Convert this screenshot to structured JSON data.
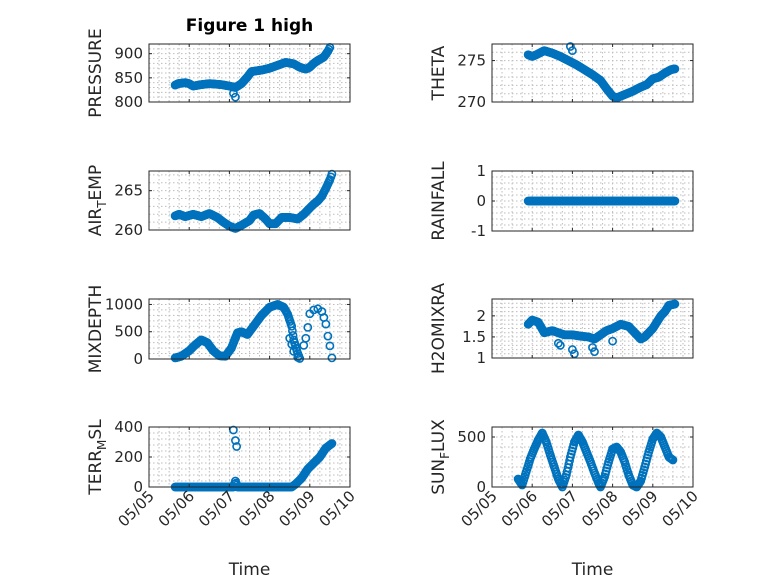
{
  "chart_data": [
    {
      "type": "scatter",
      "title": "Figure 1 high",
      "ylabel": "PRESSURE",
      "ylabel_sub": "",
      "ylim": [
        800,
        920
      ],
      "yticks": [
        800,
        850,
        900
      ],
      "xlim": [
        0,
        5
      ],
      "xticks": [
        0,
        1,
        2,
        3,
        4,
        5
      ],
      "xticklabels": [
        "05/05",
        "05/06",
        "05/07",
        "05/08",
        "05/09",
        "05/10"
      ],
      "xlabel": "",
      "show_xticklabels": false,
      "grid": true,
      "keypoints": [
        [
          0.65,
          835
        ],
        [
          0.72,
          838
        ],
        [
          0.9,
          840
        ],
        [
          1.0,
          838
        ],
        [
          1.1,
          833
        ],
        [
          1.3,
          836
        ],
        [
          1.5,
          838
        ],
        [
          1.8,
          836
        ],
        [
          2.0,
          833
        ],
        [
          2.15,
          830
        ],
        [
          2.3,
          838
        ],
        [
          2.45,
          852
        ],
        [
          2.55,
          863
        ],
        [
          2.8,
          866
        ],
        [
          3.0,
          870
        ],
        [
          3.2,
          876
        ],
        [
          3.4,
          882
        ],
        [
          3.6,
          879
        ],
        [
          3.75,
          872
        ],
        [
          3.9,
          868
        ],
        [
          4.0,
          872
        ],
        [
          4.1,
          880
        ],
        [
          4.2,
          886
        ],
        [
          4.35,
          893
        ],
        [
          4.45,
          905
        ],
        [
          4.5,
          913
        ]
      ],
      "extra_points": [
        [
          2.1,
          818
        ],
        [
          2.15,
          810
        ]
      ]
    },
    {
      "type": "scatter",
      "title": "",
      "ylabel": "THETA",
      "ylabel_sub": "",
      "ylim": [
        270,
        277
      ],
      "yticks": [
        270,
        275
      ],
      "xlim": [
        0,
        5
      ],
      "xticks": [
        0,
        1,
        2,
        3,
        4,
        5
      ],
      "xticklabels": [
        "05/05",
        "05/06",
        "05/07",
        "05/08",
        "05/09",
        "05/10"
      ],
      "xlabel": "",
      "show_xticklabels": false,
      "grid": true,
      "keypoints": [
        [
          0.9,
          275.7
        ],
        [
          1.0,
          275.5
        ],
        [
          1.1,
          275.7
        ],
        [
          1.3,
          276.2
        ],
        [
          1.5,
          275.9
        ],
        [
          1.7,
          275.5
        ],
        [
          1.9,
          275.0
        ],
        [
          2.1,
          274.5
        ],
        [
          2.3,
          273.9
        ],
        [
          2.5,
          273.3
        ],
        [
          2.7,
          272.6
        ],
        [
          2.85,
          271.6
        ],
        [
          3.0,
          270.7
        ],
        [
          3.1,
          270.5
        ],
        [
          3.3,
          270.9
        ],
        [
          3.5,
          271.3
        ],
        [
          3.7,
          271.8
        ],
        [
          3.85,
          272.1
        ],
        [
          4.0,
          272.8
        ],
        [
          4.15,
          273.0
        ],
        [
          4.3,
          273.5
        ],
        [
          4.45,
          273.9
        ],
        [
          4.55,
          274.0
        ]
      ],
      "extra_points": [
        [
          1.95,
          276.7
        ],
        [
          2.0,
          276.2
        ]
      ]
    },
    {
      "type": "scatter",
      "title": "",
      "ylabel": "AIR",
      "ylabel_sub": "T",
      "ylabel_rest": "EMP",
      "ylim": [
        260,
        267.5
      ],
      "yticks": [
        260,
        265
      ],
      "xlim": [
        0,
        5
      ],
      "xticks": [
        0,
        1,
        2,
        3,
        4,
        5
      ],
      "xticklabels": [
        "05/05",
        "05/06",
        "05/07",
        "05/08",
        "05/09",
        "05/10"
      ],
      "xlabel": "",
      "show_xticklabels": false,
      "grid": true,
      "keypoints": [
        [
          0.65,
          261.8
        ],
        [
          0.75,
          262.0
        ],
        [
          0.9,
          261.7
        ],
        [
          1.1,
          262.0
        ],
        [
          1.3,
          261.7
        ],
        [
          1.5,
          262.1
        ],
        [
          1.7,
          261.6
        ],
        [
          1.85,
          261.0
        ],
        [
          2.0,
          260.5
        ],
        [
          2.15,
          260.2
        ],
        [
          2.3,
          260.6
        ],
        [
          2.5,
          261.2
        ],
        [
          2.6,
          261.9
        ],
        [
          2.75,
          262.1
        ],
        [
          2.9,
          261.4
        ],
        [
          3.0,
          260.8
        ],
        [
          3.15,
          260.8
        ],
        [
          3.3,
          261.6
        ],
        [
          3.5,
          261.6
        ],
        [
          3.7,
          261.4
        ],
        [
          3.85,
          262.0
        ],
        [
          4.0,
          262.8
        ],
        [
          4.1,
          263.3
        ],
        [
          4.2,
          263.7
        ],
        [
          4.3,
          264.3
        ],
        [
          4.4,
          265.3
        ],
        [
          4.5,
          266.4
        ],
        [
          4.55,
          267.1
        ]
      ],
      "extra_points": []
    },
    {
      "type": "scatter",
      "title": "",
      "ylabel": "RAINFALL",
      "ylabel_sub": "",
      "ylim": [
        -1,
        1
      ],
      "yticks": [
        -1,
        0,
        1
      ],
      "xlim": [
        0,
        5
      ],
      "xticks": [
        0,
        1,
        2,
        3,
        4,
        5
      ],
      "xticklabels": [
        "05/05",
        "05/06",
        "05/07",
        "05/08",
        "05/09",
        "05/10"
      ],
      "xlabel": "",
      "show_xticklabels": false,
      "grid": true,
      "keypoints": [
        [
          0.9,
          0
        ],
        [
          4.55,
          0
        ]
      ],
      "extra_points": []
    },
    {
      "type": "scatter",
      "title": "",
      "ylabel": "MIXDEPTH",
      "ylabel_sub": "",
      "ylim": [
        0,
        1100
      ],
      "yticks": [
        0,
        500,
        1000
      ],
      "xlim": [
        0,
        5
      ],
      "xticks": [
        0,
        1,
        2,
        3,
        4,
        5
      ],
      "xticklabels": [
        "05/05",
        "05/06",
        "05/07",
        "05/08",
        "05/09",
        "05/10"
      ],
      "xlabel": "",
      "show_xticklabels": false,
      "grid": true,
      "keypoints": [
        [
          0.65,
          20
        ],
        [
          0.8,
          50
        ],
        [
          1.0,
          150
        ],
        [
          1.15,
          260
        ],
        [
          1.3,
          350
        ],
        [
          1.45,
          300
        ],
        [
          1.6,
          150
        ],
        [
          1.75,
          60
        ],
        [
          1.9,
          50
        ],
        [
          2.05,
          200
        ],
        [
          2.2,
          480
        ],
        [
          2.3,
          500
        ],
        [
          2.45,
          450
        ],
        [
          2.6,
          600
        ],
        [
          2.8,
          800
        ],
        [
          3.0,
          950
        ],
        [
          3.2,
          1000
        ],
        [
          3.35,
          950
        ],
        [
          3.45,
          820
        ],
        [
          3.55,
          600
        ],
        [
          3.6,
          350
        ],
        [
          3.7,
          100
        ],
        [
          3.75,
          10
        ]
      ],
      "extra_points": [
        [
          3.5,
          380
        ],
        [
          3.55,
          270
        ],
        [
          3.6,
          140
        ],
        [
          3.7,
          30
        ],
        [
          3.85,
          250
        ],
        [
          3.9,
          380
        ],
        [
          3.95,
          580
        ],
        [
          4.0,
          830
        ],
        [
          4.1,
          900
        ],
        [
          4.2,
          920
        ],
        [
          4.3,
          870
        ],
        [
          4.35,
          760
        ],
        [
          4.4,
          640
        ],
        [
          4.45,
          420
        ],
        [
          4.5,
          240
        ],
        [
          4.55,
          20
        ]
      ]
    },
    {
      "type": "scatter",
      "title": "",
      "ylabel": "H2OMIXRA",
      "ylabel_sub": "",
      "ylim": [
        1,
        2.4
      ],
      "yticks": [
        1,
        1.5,
        2
      ],
      "xlim": [
        0,
        5
      ],
      "xticks": [
        0,
        1,
        2,
        3,
        4,
        5
      ],
      "xticklabels": [
        "05/05",
        "05/06",
        "05/07",
        "05/08",
        "05/09",
        "05/10"
      ],
      "xlabel": "",
      "show_xticklabels": false,
      "grid": true,
      "keypoints": [
        [
          0.9,
          1.8
        ],
        [
          1.0,
          1.9
        ],
        [
          1.15,
          1.85
        ],
        [
          1.3,
          1.6
        ],
        [
          1.5,
          1.65
        ],
        [
          1.65,
          1.6
        ],
        [
          1.8,
          1.55
        ],
        [
          2.0,
          1.55
        ],
        [
          2.2,
          1.52
        ],
        [
          2.4,
          1.5
        ],
        [
          2.55,
          1.45
        ],
        [
          2.7,
          1.55
        ],
        [
          2.85,
          1.65
        ],
        [
          3.0,
          1.7
        ],
        [
          3.2,
          1.8
        ],
        [
          3.4,
          1.75
        ],
        [
          3.55,
          1.6
        ],
        [
          3.7,
          1.45
        ],
        [
          3.8,
          1.5
        ],
        [
          3.9,
          1.6
        ],
        [
          4.0,
          1.7
        ],
        [
          4.1,
          1.85
        ],
        [
          4.2,
          2.0
        ],
        [
          4.3,
          2.1
        ],
        [
          4.4,
          2.25
        ],
        [
          4.55,
          2.28
        ]
      ],
      "extra_points": [
        [
          1.65,
          1.35
        ],
        [
          1.7,
          1.3
        ],
        [
          2.0,
          1.2
        ],
        [
          2.05,
          1.1
        ],
        [
          2.5,
          1.25
        ],
        [
          2.55,
          1.15
        ],
        [
          3.0,
          1.4
        ]
      ]
    },
    {
      "type": "scatter",
      "title": "",
      "ylabel": "TERR",
      "ylabel_sub": "M",
      "ylabel_rest": "SL",
      "ylim": [
        0,
        400
      ],
      "yticks": [
        0,
        200,
        400
      ],
      "xlim": [
        0,
        5
      ],
      "xticks": [
        0,
        1,
        2,
        3,
        4,
        5
      ],
      "xticklabels": [
        "05/05",
        "05/06",
        "05/07",
        "05/08",
        "05/09",
        "05/10"
      ],
      "xlabel": "Time",
      "show_xticklabels": true,
      "grid": true,
      "keypoints": [
        [
          0.65,
          0
        ],
        [
          2.1,
          0
        ],
        [
          2.15,
          40
        ],
        [
          2.2,
          0
        ],
        [
          3.55,
          0
        ],
        [
          3.65,
          20
        ],
        [
          3.8,
          60
        ],
        [
          3.95,
          120
        ],
        [
          4.1,
          160
        ],
        [
          4.25,
          200
        ],
        [
          4.4,
          260
        ],
        [
          4.55,
          290
        ]
      ],
      "extra_points": [
        [
          2.1,
          380
        ],
        [
          2.15,
          310
        ],
        [
          2.18,
          270
        ]
      ]
    },
    {
      "type": "scatter",
      "title": "",
      "ylabel": "SUN",
      "ylabel_sub": "F",
      "ylabel_rest": "LUX",
      "ylim": [
        0,
        600
      ],
      "yticks": [
        0,
        500
      ],
      "xlim": [
        0,
        5
      ],
      "xticks": [
        0,
        1,
        2,
        3,
        4,
        5
      ],
      "xticklabels": [
        "05/05",
        "05/06",
        "05/07",
        "05/08",
        "05/09",
        "05/10"
      ],
      "xlabel": "Time",
      "show_xticklabels": true,
      "grid": true,
      "keypoints": [
        [
          0.65,
          80
        ],
        [
          0.75,
          20
        ],
        [
          0.85,
          150
        ],
        [
          0.95,
          280
        ],
        [
          1.05,
          380
        ],
        [
          1.15,
          470
        ],
        [
          1.25,
          540
        ],
        [
          1.35,
          450
        ],
        [
          1.45,
          320
        ],
        [
          1.55,
          200
        ],
        [
          1.65,
          80
        ],
        [
          1.75,
          0
        ],
        [
          1.85,
          120
        ],
        [
          1.95,
          300
        ],
        [
          2.05,
          450
        ],
        [
          2.15,
          520
        ],
        [
          2.25,
          450
        ],
        [
          2.35,
          350
        ],
        [
          2.45,
          250
        ],
        [
          2.55,
          140
        ],
        [
          2.65,
          40
        ],
        [
          2.7,
          0
        ],
        [
          2.8,
          100
        ],
        [
          2.9,
          250
        ],
        [
          3.0,
          380
        ],
        [
          3.1,
          400
        ],
        [
          3.2,
          350
        ],
        [
          3.3,
          250
        ],
        [
          3.4,
          120
        ],
        [
          3.5,
          20
        ],
        [
          3.6,
          0
        ],
        [
          3.7,
          60
        ],
        [
          3.8,
          200
        ],
        [
          3.9,
          350
        ],
        [
          4.0,
          480
        ],
        [
          4.1,
          540
        ],
        [
          4.2,
          500
        ],
        [
          4.3,
          400
        ],
        [
          4.4,
          300
        ],
        [
          4.5,
          270
        ]
      ],
      "extra_points": []
    }
  ]
}
